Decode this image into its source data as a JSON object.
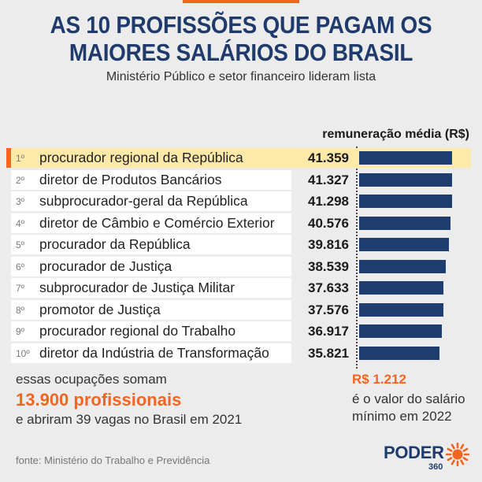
{
  "chart_data": {
    "type": "bar",
    "orientation": "horizontal",
    "title_lines": [
      "AS 10 PROFISSÕES QUE PAGAM OS",
      "MAIORES SALÁRIOS DO BRASIL"
    ],
    "subtitle": "Ministério Público e setor financeiro lideram lista",
    "value_header": "remuneração média (R$)",
    "ranks": [
      "1º",
      "2º",
      "3º",
      "4º",
      "5º",
      "6º",
      "7º",
      "8º",
      "9º",
      "10º"
    ],
    "categories": [
      "procurador regional da República",
      "diretor de Produtos Bancários",
      "subprocurador-geral da República",
      "diretor de Câmbio e Comércio Exterior",
      "procurador da República",
      "procurador de Justiça",
      "subprocurador de Justiça Militar",
      "promotor de Justiça",
      "procurador regional do Trabalho",
      "diretor da Indústria de Transformação"
    ],
    "values": [
      41359,
      41327,
      41298,
      40576,
      39816,
      38539,
      37633,
      37576,
      36917,
      35821
    ],
    "value_labels": [
      "41.359",
      "41.327",
      "41.298",
      "40.576",
      "39.816",
      "38.539",
      "37.633",
      "37.576",
      "36.917",
      "35.821"
    ],
    "highlight_index": 0
  },
  "summary": {
    "line1": "essas ocupações somam",
    "highlight": "13.900 profissionais",
    "line2": "e abriram 39 vagas no Brasil em 2021"
  },
  "minimum_wage": {
    "value_label": "R$ 1.212",
    "line1": "é o valor do salário",
    "line2": "mínimo em 2022"
  },
  "footer": {
    "source": "fonte: Ministério do Trabalho e Previdência",
    "logo_text": "PODER",
    "logo_number": "360",
    "logo_icon": "sun-icon"
  },
  "colors": {
    "background": "#ececec",
    "title": "#1f3b6e",
    "bar": "#1f3d6e",
    "accent": "#f26522",
    "highlight": "#fde9a8",
    "row": "#ffffff"
  }
}
